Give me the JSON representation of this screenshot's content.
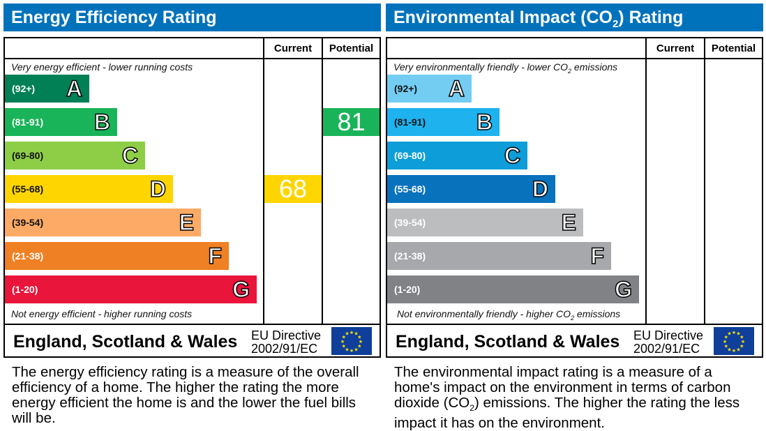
{
  "chart_data": [
    {
      "type": "bar",
      "title": "Energy Efficiency Rating",
      "columns": [
        "Current",
        "Potential"
      ],
      "top_note": "Very energy efficient - lower running costs",
      "bottom_note": "Not energy efficient - higher running costs",
      "bands": [
        {
          "letter": "A",
          "range": "(92+)",
          "color": "#008054"
        },
        {
          "letter": "B",
          "range": "(81-91)",
          "color": "#19b459"
        },
        {
          "letter": "C",
          "range": "(69-80)",
          "color": "#8dce46"
        },
        {
          "letter": "D",
          "range": "(55-68)",
          "color": "#ffd500"
        },
        {
          "letter": "E",
          "range": "(39-54)",
          "color": "#fcaa65"
        },
        {
          "letter": "F",
          "range": "(21-38)",
          "color": "#ef8023"
        },
        {
          "letter": "G",
          "range": "(1-20)",
          "color": "#e9153b"
        }
      ],
      "current": {
        "value": 68,
        "band": "D"
      },
      "potential": {
        "value": 81,
        "band": "B"
      },
      "region": "England, Scotland & Wales",
      "directive": [
        "EU Directive",
        "2002/91/EC"
      ],
      "description": "The energy efficiency rating is a measure of the overall efficiency of a home. The higher the rating the more energy efficient the home is and the lower the fuel bills will be."
    },
    {
      "type": "bar",
      "title": "Environmental Impact (CO2) Rating",
      "columns": [
        "Current",
        "Potential"
      ],
      "top_note": "Very environmentally friendly - lower CO2 emissions",
      "bottom_note": "Not environmentally friendly - higher CO2 emissions",
      "bands": [
        {
          "letter": "A",
          "range": "(92+)",
          "color": "#73cdf3"
        },
        {
          "letter": "B",
          "range": "(81-91)",
          "color": "#1eb2ef"
        },
        {
          "letter": "C",
          "range": "(69-80)",
          "color": "#0d9dd8"
        },
        {
          "letter": "D",
          "range": "(55-68)",
          "color": "#0872bd"
        },
        {
          "letter": "E",
          "range": "(39-54)",
          "color": "#bbbdbf"
        },
        {
          "letter": "F",
          "range": "(21-38)",
          "color": "#a6a8ab"
        },
        {
          "letter": "G",
          "range": "(1-20)",
          "color": "#808285"
        }
      ],
      "current": null,
      "potential": null,
      "region": "England, Scotland & Wales",
      "directive": [
        "EU Directive",
        "2002/91/EC"
      ],
      "description": "The environmental impact rating is a measure of a home's impact on the environment in terms of carbon dioxide (CO2) emissions. The higher the rating the less impact it has on the environment."
    }
  ]
}
